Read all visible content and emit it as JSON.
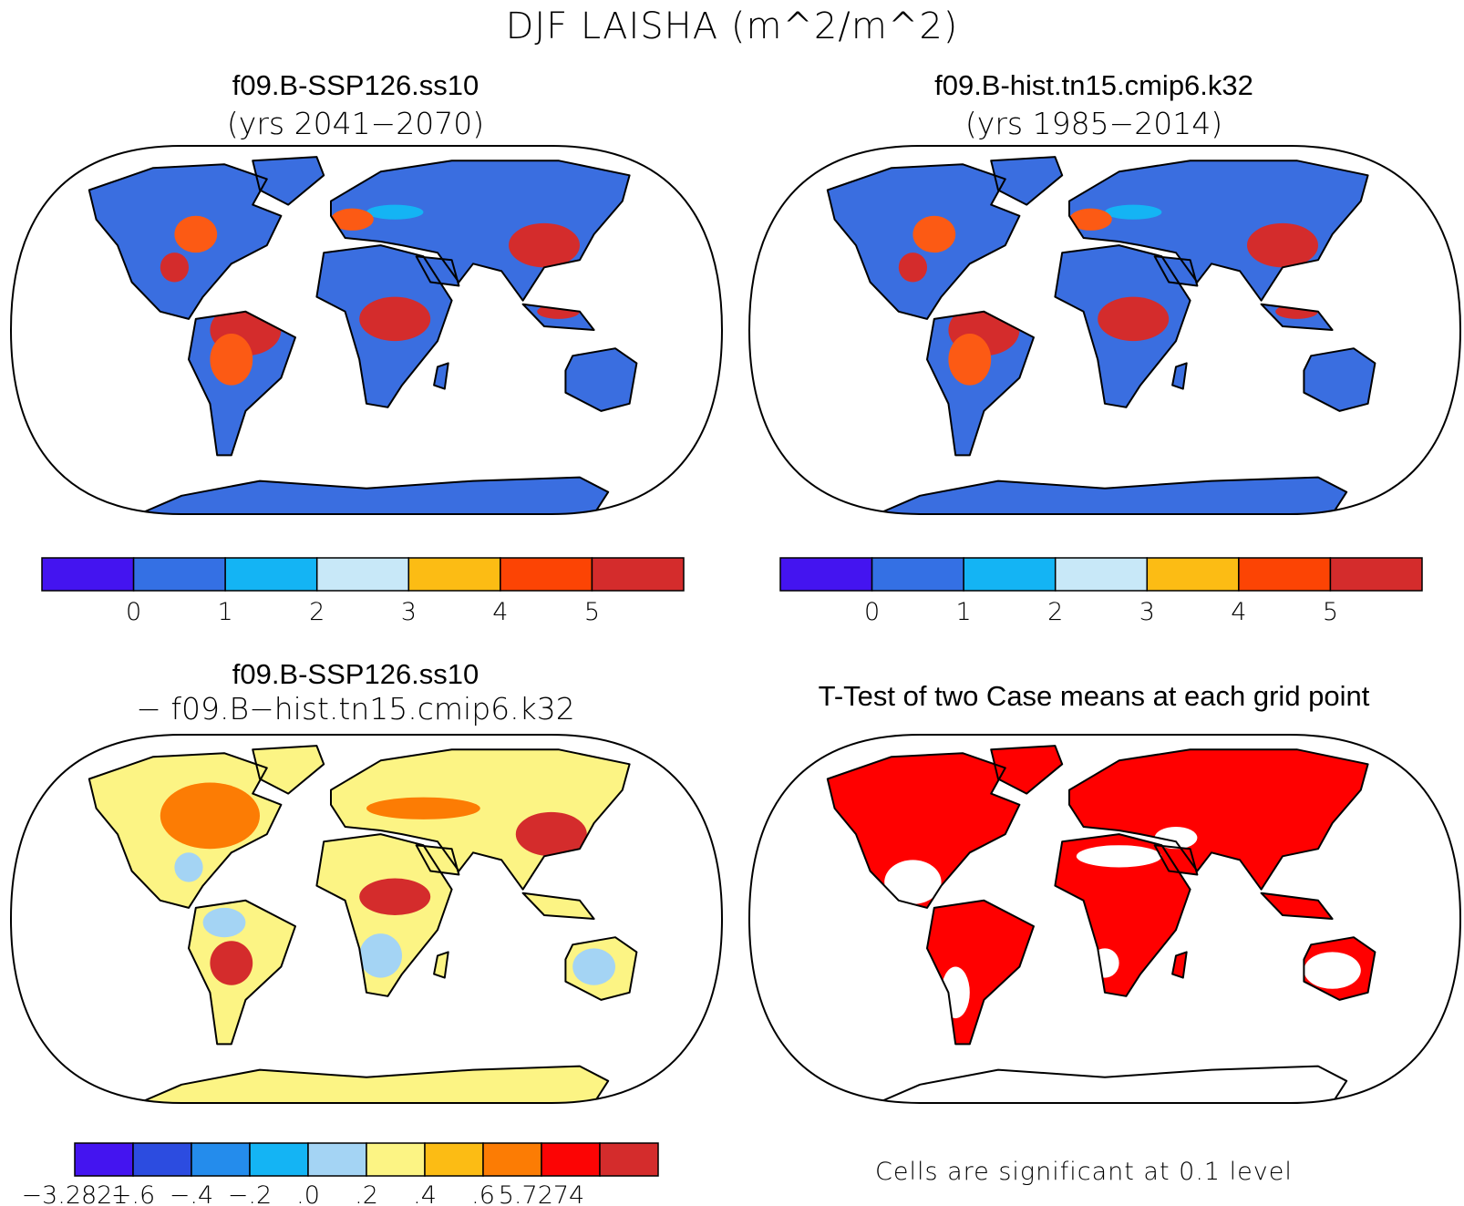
{
  "title": "DJF LAISHA (m^2/m^2)",
  "panels": [
    {
      "title": "f09.B-SSP126.ss10",
      "subtitle": "(yrs 2041−2070)"
    },
    {
      "title": "f09.B-hist.tn15.cmip6.k32",
      "subtitle": "(yrs 1985−2014)"
    },
    {
      "title": "f09.B-SSP126.ss10",
      "subtitle": "− f09.B−hist.tn15.cmip6.k32"
    },
    {
      "title": "T-Test of two Case means at each grid point",
      "subtitle": ""
    }
  ],
  "colorbar_abs": {
    "colors": [
      "#4414f0",
      "#3470e4",
      "#14b4f4",
      "#c8e8f8",
      "#fcbc14",
      "#fc4404",
      "#d42c2c"
    ],
    "ticks": [
      "0",
      "1",
      "2",
      "3",
      "4",
      "5"
    ]
  },
  "colorbar_diff": {
    "colors": [
      "#4414f0",
      "#2c4ce0",
      "#248cec",
      "#14b4f4",
      "#a4d4f4",
      "#fcf484",
      "#fcbc14",
      "#fc7c04",
      "#fc0404",
      "#d42c2c"
    ],
    "ticks": [
      "−3.2821",
      "−.6",
      "−.4",
      "−.2",
      ".0",
      ".2",
      ".4",
      ".6",
      "5.7274"
    ]
  },
  "significance_note": "Cells are significant at 0.1 level",
  "map_palettes": {
    "abs": {
      "ocean": "#ffffff",
      "base": "#3a6ee0",
      "mid": "#14b4f4",
      "high": "#d42c2c",
      "warm": "#fc5a14",
      "ice": "#3a6ee0"
    },
    "diff": {
      "ocean": "#ffffff",
      "base": "#fcf484",
      "mid": "#a4d4f4",
      "high": "#d42c2c",
      "warm": "#fc7c04",
      "ice": "#fcf484"
    },
    "ttest": {
      "ocean": "#ffffff",
      "base": "#ff0000",
      "mid": "#ffffff",
      "high": "#ff0000",
      "warm": "#ff0000",
      "ice": "#ffffff"
    }
  }
}
